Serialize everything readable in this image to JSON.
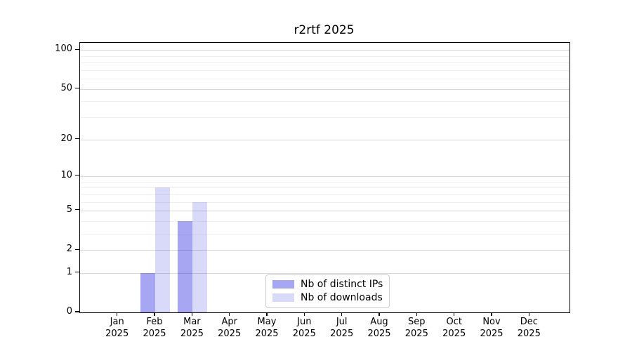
{
  "chart_data": {
    "type": "bar",
    "title": "r2rtf 2025",
    "categories": [
      "Jan",
      "Feb",
      "Mar",
      "Apr",
      "May",
      "Jun",
      "Jul",
      "Aug",
      "Sep",
      "Oct",
      "Nov",
      "Dec"
    ],
    "year": "2025",
    "series": [
      {
        "name": "Nb of distinct IPs",
        "color": "rgba(0,0,221,0.35)",
        "values": [
          0,
          1,
          4,
          0,
          0,
          0,
          0,
          0,
          0,
          0,
          0,
          0
        ]
      },
      {
        "name": "Nb of downloads",
        "color": "rgba(0,0,221,0.15)",
        "values": [
          0,
          8,
          6,
          0,
          0,
          0,
          0,
          0,
          0,
          0,
          0,
          0
        ]
      }
    ],
    "y_scale": "log10(1+x)",
    "y_ticks": [
      0,
      1,
      2,
      5,
      10,
      20,
      50,
      100
    ],
    "y_minor_gridlines": [
      3,
      4,
      6,
      7,
      8,
      9,
      30,
      40,
      60,
      70,
      80,
      90
    ],
    "ylim": [
      0,
      113.8
    ],
    "grid": true,
    "legend_position": "lower center",
    "colors": {
      "major_grid": "#d8d8d8",
      "minor_grid": "#efefef",
      "axis": "#000000",
      "background": "#ffffff"
    }
  }
}
